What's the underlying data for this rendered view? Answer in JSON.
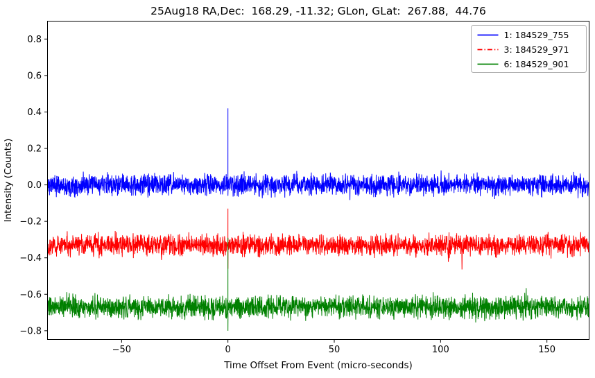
{
  "chart_data": {
    "type": "line",
    "title": "25Aug18 RA,Dec:  168.29, -11.32; GLon, GLat:  267.88,  44.76",
    "xlabel": "Time Offset From Event (micro-seconds)",
    "ylabel": "Intensity (Counts)",
    "xlim": [
      -85,
      170
    ],
    "ylim": [
      -0.85,
      0.9
    ],
    "xticks": [
      -50,
      0,
      50,
      100,
      150
    ],
    "yticks": [
      -0.8,
      -0.6,
      -0.4,
      -0.2,
      0.0,
      0.2,
      0.4,
      0.6,
      0.8
    ],
    "grid": false,
    "legend_position": "upper right",
    "legend_border_color": "#b0b0b0",
    "series": [
      {
        "name": "1: 184529_755",
        "color": "#0000ff",
        "linestyle": "solid",
        "baseline": 0.0,
        "noise_sigma": 0.028,
        "spike": {
          "x": 0,
          "ymax": 0.42,
          "ymin": -0.06
        },
        "n_points": 2600,
        "seed": 11
      },
      {
        "name": "3: 184529_971",
        "color": "#ff0000",
        "linestyle": "dashdot",
        "baseline": -0.33,
        "noise_sigma": 0.028,
        "spike": {
          "x": 0,
          "ymax": -0.13,
          "ymin": -0.46
        },
        "n_points": 2600,
        "seed": 22
      },
      {
        "name": "6: 184529_901",
        "color": "#008000",
        "linestyle": "solid",
        "baseline": -0.67,
        "noise_sigma": 0.03,
        "spike": {
          "x": 0,
          "ymax": -0.29,
          "ymin": -0.8
        },
        "n_points": 2600,
        "seed": 33
      }
    ]
  }
}
